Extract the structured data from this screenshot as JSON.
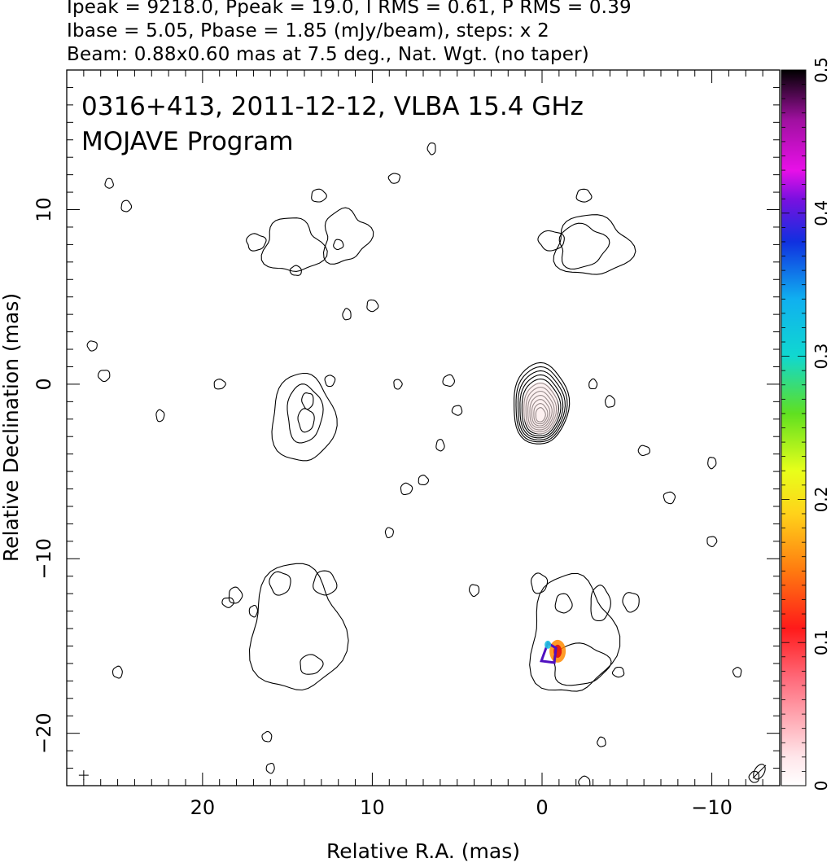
{
  "header": {
    "line1": "Ipeak = 9218.0, Ppeak = 19.0, I RMS = 0.61, P RMS = 0.39",
    "line2": "Ibase = 5.05, Pbase = 1.85 (mJy/beam), steps: x 2",
    "line3": "Beam: 0.88x0.60 mas at 7.5 deg., Nat. Wgt. (no taper)"
  },
  "annotations": {
    "source_line": "0316+413, 2011-12-12, VLBA 15.4 GHz",
    "program_line": "MOJAVE Program"
  },
  "chart_data": {
    "type": "contour",
    "xlabel": "Relative R.A. (mas)",
    "ylabel": "Relative Declination (mas)",
    "xlim": [
      28,
      -14
    ],
    "ylim": [
      -23,
      18
    ],
    "xticks": [
      20,
      10,
      0,
      -10
    ],
    "yticks": [
      10,
      0,
      -10,
      -20
    ],
    "colorbar": {
      "range": [
        0,
        0.5
      ],
      "ticks": [
        0,
        0.1,
        0.2,
        0.3,
        0.4,
        0.5
      ]
    },
    "contour_groups": [
      {
        "name": "core",
        "x": 0.0,
        "y": -1.0
      },
      {
        "name": "upper-left",
        "x": 13.5,
        "y": 8.0
      },
      {
        "name": "upper-right",
        "x": -1.5,
        "y": 8.0
      },
      {
        "name": "middle-left",
        "x": 14.0,
        "y": -1.5
      },
      {
        "name": "lower-left",
        "x": 14.0,
        "y": -13.5
      },
      {
        "name": "lower-right",
        "x": -1.5,
        "y": -13.5
      }
    ]
  }
}
